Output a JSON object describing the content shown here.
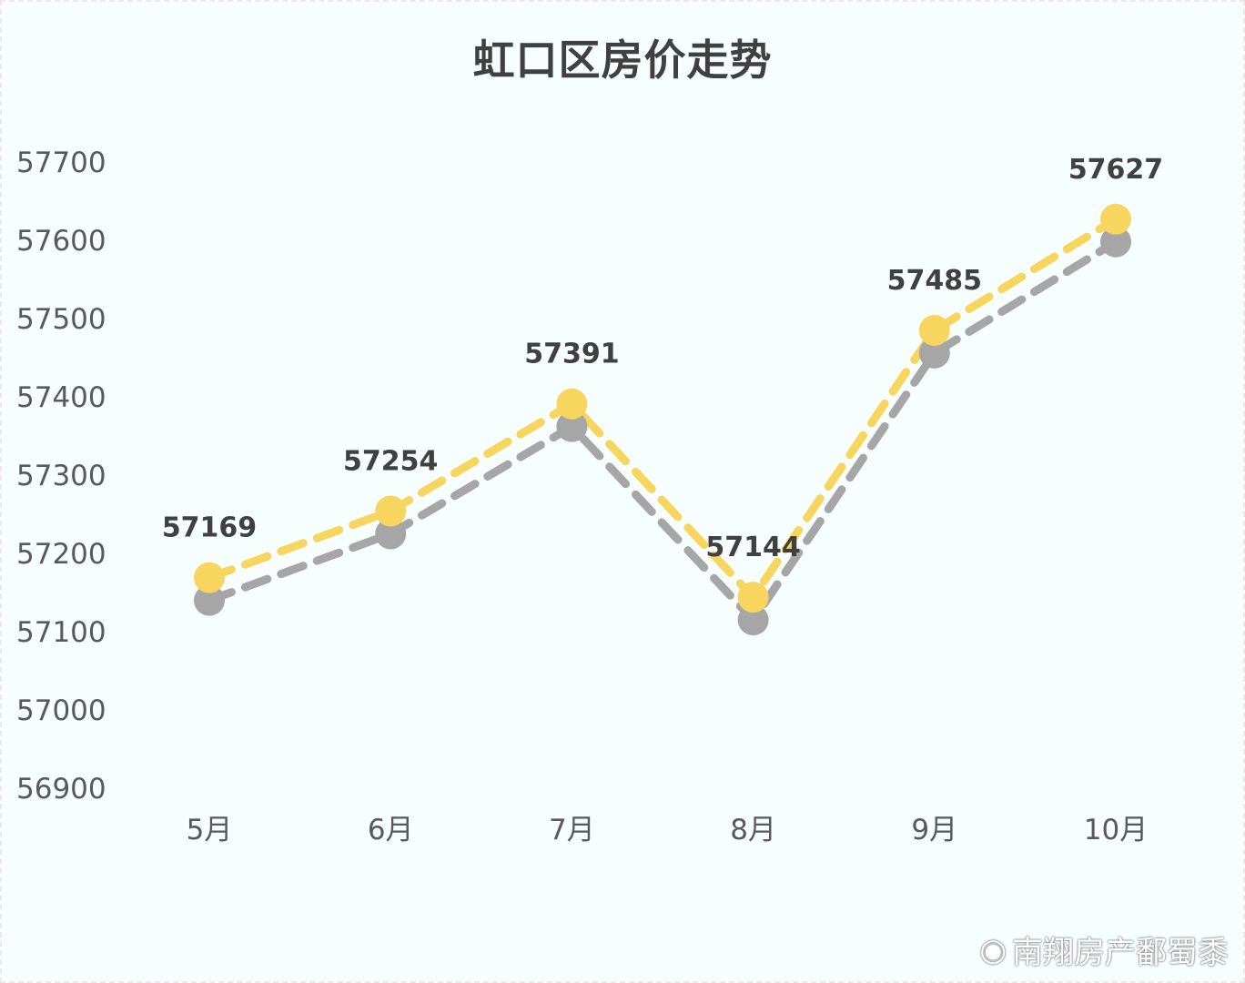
{
  "chart_data": {
    "type": "line",
    "title": "虹口区房价走势",
    "categories": [
      "5月",
      "6月",
      "7月",
      "8月",
      "9月",
      "10月"
    ],
    "series": [
      {
        "values": [
          57169,
          57254,
          57391,
          57144,
          57485,
          57627
        ],
        "color": "#f8d55e",
        "labeled": true
      },
      {
        "values": [
          57140,
          57225,
          57362,
          57115,
          57456,
          57598
        ],
        "color": "#a6a6a6",
        "labeled": false
      }
    ],
    "yticks": [
      56900,
      57000,
      57100,
      57200,
      57300,
      57400,
      57500,
      57600,
      57700
    ],
    "ylim": [
      56900,
      57700
    ],
    "grid": false,
    "legend": "none"
  },
  "watermark": {
    "icon": "weibo-icon",
    "text": "南翔房产鄱蜀黍"
  }
}
